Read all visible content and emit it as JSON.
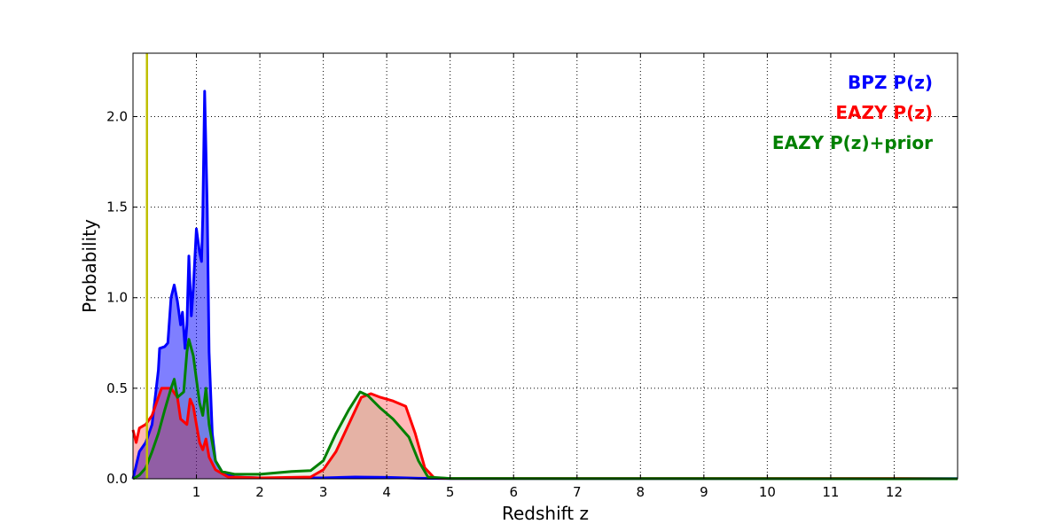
{
  "chart_data": {
    "type": "area",
    "title": "",
    "xlabel": "Redshift z",
    "ylabel": "Probability",
    "xlim": [
      0,
      13
    ],
    "ylim": [
      0,
      2.35
    ],
    "grid": true,
    "legend_position": "top-right",
    "xticks": [
      1,
      2,
      3,
      4,
      5,
      6,
      7,
      8,
      9,
      10,
      11,
      12
    ],
    "xtick_labels": [
      "1",
      "2",
      "3",
      "4",
      "5",
      "6",
      "7",
      "8",
      "9",
      "10",
      "11",
      "12"
    ],
    "yticks": [
      0,
      0.5,
      1,
      1.5,
      2
    ],
    "ytick_labels": [
      "0.0",
      "0.5",
      "1.0",
      "1.5",
      "2.0"
    ],
    "vline": {
      "x": 0.22,
      "color": "#bfbf00"
    },
    "series": [
      {
        "name": "BPZ P(z)",
        "color": "#0000ff",
        "fill_opacity": 0.5,
        "x": [
          0,
          0.1,
          0.2,
          0.3,
          0.4,
          0.42,
          0.5,
          0.55,
          0.6,
          0.65,
          0.7,
          0.75,
          0.78,
          0.82,
          0.85,
          0.88,
          0.92,
          0.95,
          1.0,
          1.05,
          1.08,
          1.1,
          1.13,
          1.17,
          1.2,
          1.25,
          1.3,
          1.4,
          1.6,
          2,
          3,
          3.5,
          4,
          4.5,
          5,
          13
        ],
        "y": [
          0,
          0.15,
          0.2,
          0.3,
          0.6,
          0.72,
          0.73,
          0.75,
          1.0,
          1.07,
          0.98,
          0.85,
          0.92,
          0.72,
          0.85,
          1.23,
          0.9,
          1.05,
          1.38,
          1.25,
          1.2,
          1.45,
          2.14,
          1.5,
          0.7,
          0.25,
          0.1,
          0.04,
          0.01,
          0.005,
          0.005,
          0.01,
          0.008,
          0.003,
          0.001,
          0.001
        ]
      },
      {
        "name": "EAZY P(z)",
        "color": "#ff0000",
        "fill_opacity": 0.28,
        "x": [
          0,
          0.05,
          0.1,
          0.2,
          0.3,
          0.4,
          0.45,
          0.6,
          0.7,
          0.75,
          0.85,
          0.9,
          0.95,
          1.0,
          1.05,
          1.1,
          1.15,
          1.2,
          1.3,
          1.5,
          2,
          2.8,
          3.0,
          3.2,
          3.4,
          3.6,
          3.75,
          3.9,
          4.1,
          4.3,
          4.45,
          4.6,
          4.75,
          5,
          12,
          13
        ],
        "y": [
          0.27,
          0.2,
          0.28,
          0.3,
          0.35,
          0.45,
          0.5,
          0.5,
          0.45,
          0.33,
          0.3,
          0.44,
          0.4,
          0.3,
          0.2,
          0.16,
          0.22,
          0.12,
          0.05,
          0.01,
          0.005,
          0.01,
          0.05,
          0.15,
          0.3,
          0.45,
          0.47,
          0.45,
          0.43,
          0.4,
          0.25,
          0.06,
          0.005,
          0.002,
          0.002,
          0
        ]
      },
      {
        "name": "EAZY P(z)+prior",
        "color": "#008000",
        "fill_opacity": 0.1,
        "x": [
          0,
          0.1,
          0.2,
          0.3,
          0.4,
          0.5,
          0.6,
          0.65,
          0.7,
          0.8,
          0.85,
          0.88,
          0.95,
          1.0,
          1.05,
          1.1,
          1.15,
          1.2,
          1.3,
          1.4,
          1.6,
          2,
          2.5,
          2.8,
          3.0,
          3.2,
          3.4,
          3.58,
          3.7,
          3.9,
          4.1,
          4.35,
          4.5,
          4.65,
          5,
          13
        ],
        "y": [
          0,
          0.02,
          0.06,
          0.15,
          0.25,
          0.38,
          0.5,
          0.55,
          0.45,
          0.48,
          0.7,
          0.77,
          0.68,
          0.55,
          0.42,
          0.35,
          0.5,
          0.3,
          0.1,
          0.04,
          0.025,
          0.025,
          0.04,
          0.045,
          0.1,
          0.25,
          0.38,
          0.48,
          0.46,
          0.39,
          0.33,
          0.23,
          0.1,
          0.01,
          0.002,
          0
        ]
      }
    ]
  }
}
